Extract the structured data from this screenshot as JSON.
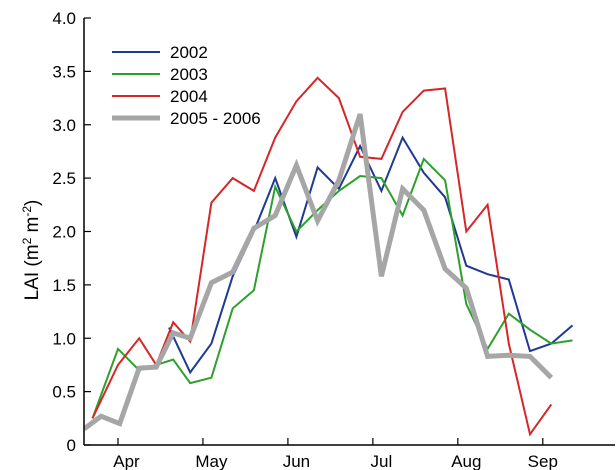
{
  "chart_data": {
    "type": "line",
    "ylabel_main": "LAI (m",
    "ylabel_sup1": "2",
    "ylabel_mid": " m",
    "ylabel_sup2": "-2",
    "ylabel_end": ")",
    "ylim": [
      0,
      4.0
    ],
    "xlim": [
      0,
      6.25
    ],
    "yticks": [
      {
        "value": 0,
        "label": "0"
      },
      {
        "value": 0.5,
        "label": "0.5"
      },
      {
        "value": 1.0,
        "label": "1.0"
      },
      {
        "value": 1.5,
        "label": "1.5"
      },
      {
        "value": 2.0,
        "label": "2.0"
      },
      {
        "value": 2.5,
        "label": "2.5"
      },
      {
        "value": 3.0,
        "label": "3.0"
      },
      {
        "value": 3.5,
        "label": "3.5"
      },
      {
        "value": 4.0,
        "label": "4.0"
      }
    ],
    "xticks": [
      0.4,
      1.4,
      2.4,
      3.4,
      4.4,
      5.4
    ],
    "categories": [
      {
        "label": "Apr",
        "x": 0.5
      },
      {
        "label": "May",
        "x": 1.5
      },
      {
        "label": "Jun",
        "x": 2.5
      },
      {
        "label": "Jul",
        "x": 3.5
      },
      {
        "label": "Aug",
        "x": 4.5
      },
      {
        "label": "Sep",
        "x": 5.4
      }
    ],
    "legend_position": "top-left",
    "series": [
      {
        "name": "2002",
        "color": "#1f3a93",
        "width": 2,
        "points": [
          [
            1.0,
            1.1
          ],
          [
            1.25,
            0.68
          ],
          [
            1.5,
            0.95
          ],
          [
            1.75,
            1.58
          ],
          [
            2.0,
            2.0
          ],
          [
            2.25,
            2.5
          ],
          [
            2.5,
            1.95
          ],
          [
            2.75,
            2.6
          ],
          [
            3.0,
            2.4
          ],
          [
            3.25,
            2.8
          ],
          [
            3.5,
            2.38
          ],
          [
            3.75,
            2.88
          ],
          [
            4.0,
            2.55
          ],
          [
            4.25,
            2.32
          ],
          [
            4.5,
            1.68
          ],
          [
            4.75,
            1.6
          ],
          [
            5.0,
            1.55
          ],
          [
            5.25,
            0.88
          ],
          [
            5.5,
            0.95
          ],
          [
            5.75,
            1.12
          ]
        ]
      },
      {
        "name": "2003",
        "color": "#2ca02c",
        "width": 2,
        "points": [
          [
            0.1,
            0.25
          ],
          [
            0.4,
            0.9
          ],
          [
            0.65,
            0.7
          ],
          [
            0.85,
            0.75
          ],
          [
            1.05,
            0.8
          ],
          [
            1.25,
            0.58
          ],
          [
            1.5,
            0.63
          ],
          [
            1.75,
            1.28
          ],
          [
            2.0,
            1.45
          ],
          [
            2.25,
            2.42
          ],
          [
            2.5,
            2.0
          ],
          [
            2.75,
            2.2
          ],
          [
            3.0,
            2.38
          ],
          [
            3.25,
            2.52
          ],
          [
            3.5,
            2.5
          ],
          [
            3.75,
            2.15
          ],
          [
            4.0,
            2.68
          ],
          [
            4.25,
            2.48
          ],
          [
            4.5,
            1.32
          ],
          [
            4.75,
            0.9
          ],
          [
            5.0,
            1.23
          ],
          [
            5.25,
            1.08
          ],
          [
            5.5,
            0.95
          ],
          [
            5.75,
            0.98
          ]
        ]
      },
      {
        "name": "2004",
        "color": "#d62728",
        "width": 2,
        "points": [
          [
            0.1,
            0.25
          ],
          [
            0.4,
            0.75
          ],
          [
            0.65,
            1.0
          ],
          [
            0.85,
            0.75
          ],
          [
            1.05,
            1.15
          ],
          [
            1.25,
            0.97
          ],
          [
            1.5,
            2.27
          ],
          [
            1.75,
            2.5
          ],
          [
            2.0,
            2.38
          ],
          [
            2.25,
            2.88
          ],
          [
            2.5,
            3.22
          ],
          [
            2.75,
            3.44
          ],
          [
            3.0,
            3.25
          ],
          [
            3.25,
            2.7
          ],
          [
            3.5,
            2.68
          ],
          [
            3.75,
            3.12
          ],
          [
            4.0,
            3.32
          ],
          [
            4.25,
            3.34
          ],
          [
            4.5,
            2.0
          ],
          [
            4.75,
            2.25
          ],
          [
            5.0,
            0.95
          ],
          [
            5.25,
            0.1
          ],
          [
            5.5,
            0.38
          ]
        ]
      },
      {
        "name": "2005 - 2006",
        "color": "#a6a6a6",
        "width": 5,
        "points": [
          [
            0.0,
            0.15
          ],
          [
            0.2,
            0.27
          ],
          [
            0.42,
            0.2
          ],
          [
            0.65,
            0.72
          ],
          [
            0.85,
            0.73
          ],
          [
            1.05,
            1.05
          ],
          [
            1.25,
            1.0
          ],
          [
            1.5,
            1.52
          ],
          [
            1.75,
            1.62
          ],
          [
            2.0,
            2.03
          ],
          [
            2.25,
            2.15
          ],
          [
            2.5,
            2.62
          ],
          [
            2.75,
            2.1
          ],
          [
            3.0,
            2.48
          ],
          [
            3.25,
            3.1
          ],
          [
            3.5,
            1.58
          ],
          [
            3.75,
            2.4
          ],
          [
            4.0,
            2.2
          ],
          [
            4.25,
            1.65
          ],
          [
            4.5,
            1.47
          ],
          [
            4.75,
            0.83
          ],
          [
            5.0,
            0.84
          ],
          [
            5.25,
            0.83
          ],
          [
            5.5,
            0.63
          ]
        ]
      }
    ]
  }
}
